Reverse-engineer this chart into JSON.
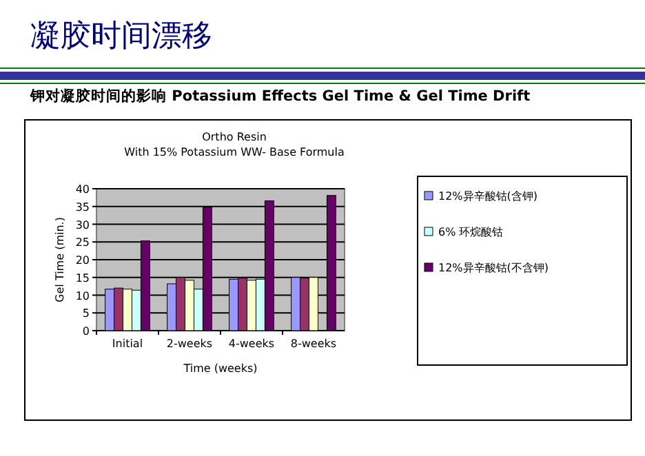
{
  "chart_data": {
    "type": "bar",
    "title": "凝胶时间漂移",
    "subtitle": "钾对凝胶时间的影响 Potassium Effects Gel Time & Gel Time Drift",
    "annotations": [
      "Ortho Resin",
      "With 15% Potassium WW- Base Formula"
    ],
    "xlabel": "Time (weeks)",
    "ylabel": "Gel Time (min.)",
    "categories": [
      "Initial",
      "2-weeks",
      "4-weeks",
      "8-weeks"
    ],
    "series": [
      {
        "name": "12%异辛酸钴(含钾)",
        "color": "#9999ff",
        "values": [
          11.7,
          13.2,
          14.5,
          15.0
        ]
      },
      {
        "color": "#993366",
        "values": [
          12.0,
          15.0,
          14.8,
          14.8
        ]
      },
      {
        "color": "#ffffcc",
        "values": [
          11.7,
          14.2,
          14.2,
          15.0
        ]
      },
      {
        "name": "6% 环烷酸钴",
        "color": "#ccffff",
        "values": [
          11.4,
          11.7,
          14.5,
          null
        ]
      },
      {
        "name": "12%异辛酸钴(不含钾)",
        "color": "#660066",
        "values": [
          25.3,
          34.8,
          36.6,
          38.1
        ]
      }
    ],
    "ylim": [
      0,
      40
    ],
    "yticks": [
      0,
      5,
      10,
      15,
      20,
      25,
      30,
      35,
      40
    ],
    "grid": "y",
    "legend": "right"
  }
}
